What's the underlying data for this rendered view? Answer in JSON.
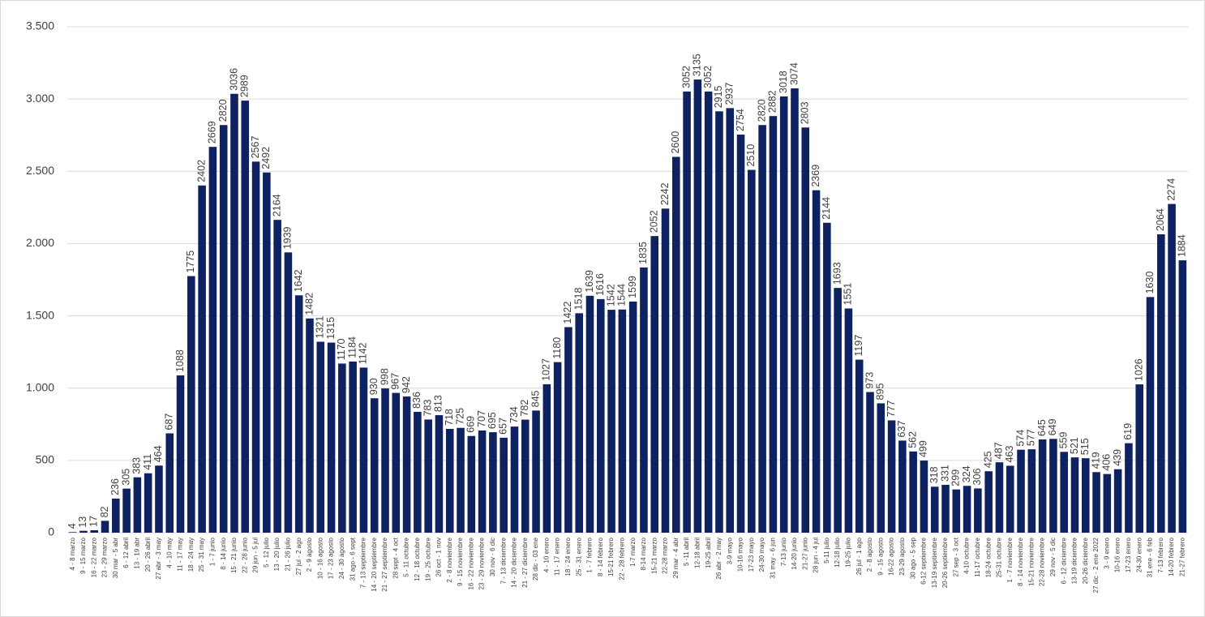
{
  "chart_data": {
    "type": "bar",
    "categories": [
      "4 - 8 marzo",
      "9 - 15 marzo",
      "16 - 22 marzo",
      "23 - 29 marzo",
      "30 mar - 5 abr",
      "6 - 12 abril",
      "13 - 19 abr",
      "20 - 26 abril",
      "27 abr - 3 may",
      "4 - 10 may",
      "11 - 17 may",
      "18 - 24 may",
      "25 - 31 may",
      "1 - 7 junio",
      "8 - 14 junio",
      "15 - 21 junio",
      "22 - 28 junio",
      "29 jun - 5 jul",
      "5 - 12 julio",
      "13 - 20 julio",
      "21 - 26 julio",
      "27 jul - 2 ago",
      "2 - 9 agosto",
      "10 - 16 agosto",
      "17 - 23 agosto",
      "24 - 30 agosto",
      "31 ago - 6 sept",
      "7 - 13 septiembre",
      "14 - 20 septiembre",
      "21 - 27 septiembre",
      "28 sept - 4 oct",
      "5 - 11 octubre",
      "12 - 18 octubre",
      "19 - 25 octubre",
      "26 oct - 1 nov",
      "2 - 8 noviembre",
      "9 - 15 noviembre",
      "16 - 22 noviembre",
      "23 - 29 noviembre",
      "30 nov - 6 dic",
      "7 - 13 diciembre",
      "14 - 20 diciembre",
      "21 - 27 diciembre",
      "28 dic - 03 ene",
      "4 - 10 enero",
      "11 - 17 enero",
      "18 - 24 enero",
      "25 - 31 enero",
      "1 - 7 febrero",
      "8 - 14 febrero",
      "15-21 febrero",
      "22 - 28 febrero",
      "1-7 marzo",
      "8-14 marzo",
      "15-21 marzo",
      "22-28 marzo",
      "29 mar - 4 abr",
      "5 -11 abril",
      "12-18 abril",
      "19-25 abril",
      "26 abr - 2 may",
      "3-9 mayo",
      "10-16 mayo",
      "17-23 mayo",
      "24-30 mayo",
      "31 may - 6 jun",
      "7-13 junio",
      "14-20 junio",
      "21-27 junio",
      "28 jun - 4 jul",
      "5-11 julio",
      "12-18 julio",
      "19-25 julio",
      "26 jul - 1 ago",
      "2 - 8 agosto",
      "9 - 15 agosto",
      "16-22 agosto",
      "23-29 agosto",
      "30 ago - 5 sep",
      "6-12 septiembre",
      "13-19 septiembre",
      "20-26 septiembre",
      "27 sep - 3 oct",
      "4-10 octubre",
      "11-17 octubre",
      "18-24 octubre",
      "25-31 octubre",
      "1 - 7 noviembre",
      "8 - 14 noviembre",
      "15-21 noviembre",
      "22-28 noviembre",
      "29 nov - 5 dic",
      "6 - 12 diciembre",
      "13-19 diciembre",
      "20-26 diciembre",
      "27 dic - 2 ene 2022",
      "3 - 9 enero",
      "10-16 enero",
      "17-23 enero",
      "24-30 enero",
      "31 ene - 6 feb",
      "7-13 febrero",
      "14-20 febrero",
      "21-27 febrero"
    ],
    "values": [
      4,
      13,
      17,
      82,
      236,
      305,
      383,
      411,
      464,
      687,
      1088,
      1775,
      2402,
      2669,
      2820,
      3036,
      2989,
      2567,
      2492,
      2164,
      1939,
      1642,
      1482,
      1321,
      1315,
      1170,
      1184,
      1142,
      930,
      998,
      967,
      942,
      836,
      783,
      813,
      718,
      725,
      669,
      707,
      695,
      657,
      734,
      782,
      845,
      1027,
      1180,
      1422,
      1518,
      1639,
      1616,
      1542,
      1544,
      1599,
      1835,
      2052,
      2242,
      2600,
      3052,
      3135,
      3052,
      2915,
      2937,
      2754,
      2510,
      2820,
      2882,
      3018,
      3074,
      2803,
      2369,
      2144,
      1693,
      1551,
      1197,
      973,
      895,
      777,
      637,
      562,
      499,
      318,
      331,
      299,
      324,
      306,
      425,
      487,
      463,
      574,
      577,
      645,
      649,
      559,
      521,
      515,
      419,
      406,
      439,
      619,
      1026,
      1630,
      2064,
      2274,
      1884
    ],
    "color": "#0e2161",
    "ylim": [
      0,
      3500
    ],
    "yticks": [
      0,
      500,
      {
        "value": 1000,
        "label": "1.000"
      },
      {
        "value": 1500,
        "label": "1.500"
      },
      {
        "value": 2000,
        "label": "2.000"
      },
      {
        "value": 2500,
        "label": "2.500"
      },
      {
        "value": 3000,
        "label": "3.000"
      },
      {
        "value": 3500,
        "label": "3.500"
      }
    ],
    "grid": true
  }
}
